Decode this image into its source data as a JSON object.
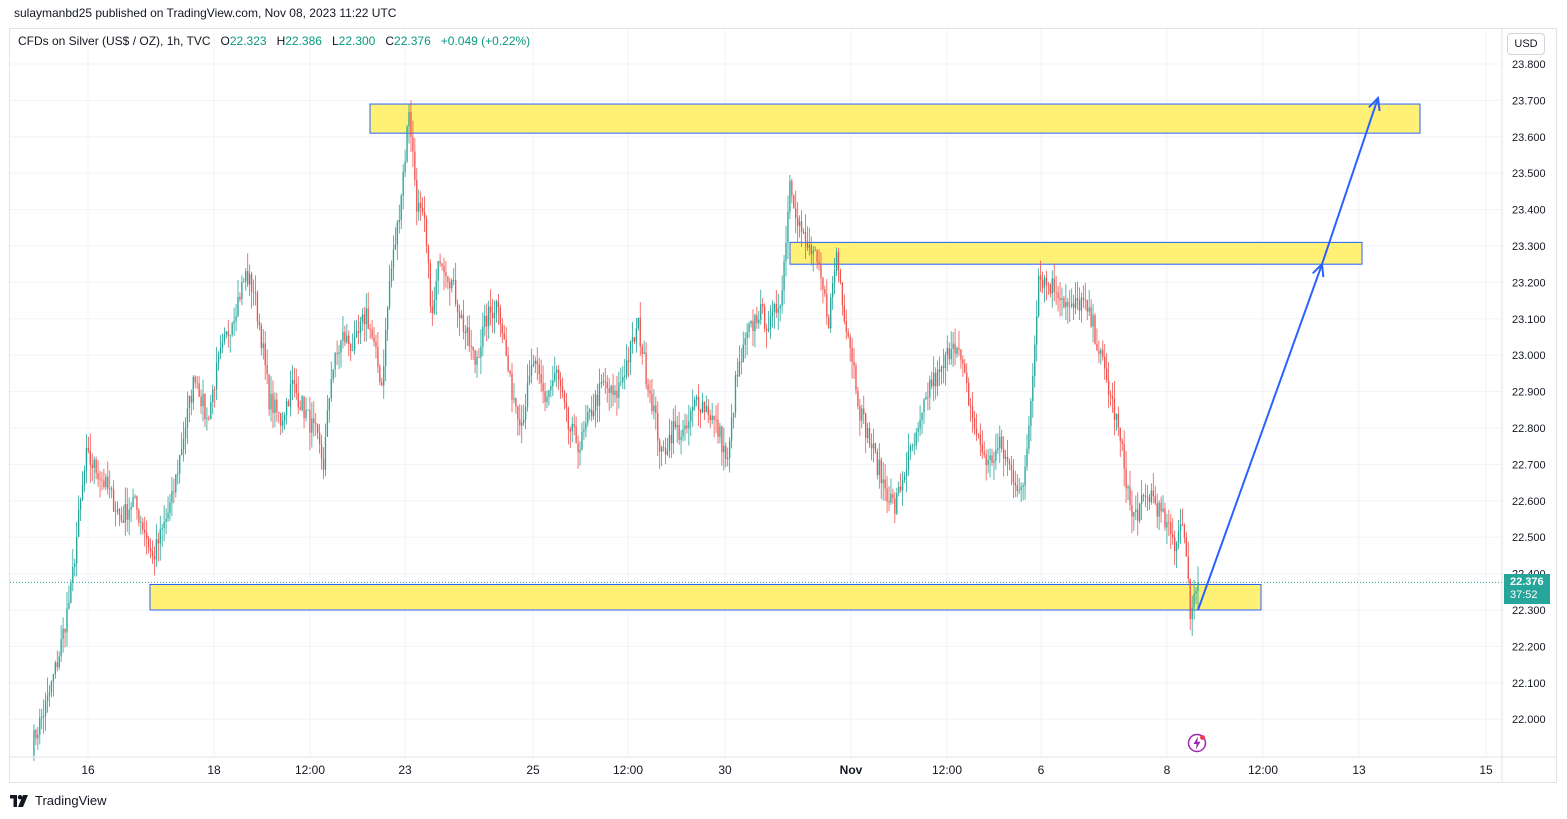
{
  "header": {
    "published": "sulaymanbd25 published on TradingView.com, Nov 08, 2023 11:22 UTC"
  },
  "symbol": {
    "name": "CFDs on Silver (US$ / OZ), 1h, TVC",
    "open_label": "O",
    "open": "22.323",
    "high_label": "H",
    "high": "22.386",
    "low_label": "L",
    "low": "22.300",
    "close_label": "C",
    "close": "22.376",
    "change": "+0.049 (+0.22%)"
  },
  "currency_button": "USD",
  "last_price": {
    "price": "22.376",
    "countdown": "37:52"
  },
  "footer": {
    "brand": "TradingView"
  },
  "colors": {
    "up": "#26a69a",
    "down": "#ef5350",
    "zone_fill": "#fff176",
    "zone_border": "#2962ff",
    "arrow": "#2962ff"
  },
  "chart_data": {
    "type": "candlestick",
    "title": "CFDs on Silver (US$ / OZ), 1h, TVC",
    "y_axis": {
      "ticks": [
        "23.800",
        "23.700",
        "23.600",
        "23.500",
        "23.400",
        "23.300",
        "23.200",
        "23.100",
        "23.000",
        "22.900",
        "22.800",
        "22.700",
        "22.600",
        "22.500",
        "22.400",
        "22.300",
        "22.200",
        "22.100",
        "22.000"
      ],
      "range": [
        21.92,
        23.82
      ]
    },
    "x_axis": {
      "ticks": [
        "16",
        "18",
        "12:00",
        "23",
        "25",
        "12:00",
        "30",
        "Nov",
        "12:00",
        "6",
        "8",
        "12:00",
        "13",
        "15"
      ]
    },
    "approx_path": [
      [
        0,
        21.93
      ],
      [
        8,
        22.05
      ],
      [
        14,
        22.18
      ],
      [
        20,
        22.35
      ],
      [
        24,
        22.55
      ],
      [
        28,
        22.72
      ],
      [
        34,
        22.68
      ],
      [
        40,
        22.62
      ],
      [
        46,
        22.55
      ],
      [
        52,
        22.6
      ],
      [
        58,
        22.52
      ],
      [
        62,
        22.44
      ],
      [
        66,
        22.5
      ],
      [
        72,
        22.6
      ],
      [
        78,
        22.78
      ],
      [
        84,
        22.95
      ],
      [
        90,
        22.82
      ],
      [
        96,
        22.98
      ],
      [
        104,
        23.12
      ],
      [
        110,
        23.22
      ],
      [
        114,
        23.18
      ],
      [
        118,
        23.05
      ],
      [
        122,
        22.88
      ],
      [
        128,
        22.82
      ],
      [
        134,
        22.92
      ],
      [
        140,
        22.85
      ],
      [
        146,
        22.78
      ],
      [
        150,
        22.7
      ],
      [
        154,
        22.95
      ],
      [
        160,
        23.05
      ],
      [
        166,
        23.02
      ],
      [
        172,
        23.12
      ],
      [
        176,
        23.02
      ],
      [
        180,
        22.92
      ],
      [
        184,
        23.2
      ],
      [
        188,
        23.35
      ],
      [
        192,
        23.55
      ],
      [
        194,
        23.68
      ],
      [
        198,
        23.42
      ],
      [
        202,
        23.35
      ],
      [
        206,
        23.1
      ],
      [
        210,
        23.28
      ],
      [
        216,
        23.2
      ],
      [
        222,
        23.08
      ],
      [
        228,
        22.98
      ],
      [
        234,
        23.1
      ],
      [
        240,
        23.15
      ],
      [
        246,
        22.92
      ],
      [
        252,
        22.82
      ],
      [
        258,
        22.98
      ],
      [
        264,
        22.88
      ],
      [
        270,
        22.95
      ],
      [
        276,
        22.8
      ],
      [
        282,
        22.75
      ],
      [
        288,
        22.85
      ],
      [
        294,
        22.92
      ],
      [
        300,
        22.88
      ],
      [
        306,
        22.98
      ],
      [
        312,
        23.08
      ],
      [
        316,
        22.95
      ],
      [
        320,
        22.85
      ],
      [
        324,
        22.72
      ],
      [
        330,
        22.8
      ],
      [
        336,
        22.78
      ],
      [
        342,
        22.88
      ],
      [
        348,
        22.85
      ],
      [
        354,
        22.78
      ],
      [
        358,
        22.7
      ],
      [
        362,
        22.92
      ],
      [
        368,
        23.05
      ],
      [
        374,
        23.12
      ],
      [
        380,
        23.08
      ],
      [
        386,
        23.18
      ],
      [
        390,
        23.48
      ],
      [
        394,
        23.38
      ],
      [
        398,
        23.3
      ],
      [
        402,
        23.28
      ],
      [
        406,
        23.2
      ],
      [
        410,
        23.1
      ],
      [
        414,
        23.28
      ],
      [
        418,
        23.12
      ],
      [
        422,
        23.0
      ],
      [
        426,
        22.85
      ],
      [
        432,
        22.75
      ],
      [
        438,
        22.65
      ],
      [
        444,
        22.58
      ],
      [
        450,
        22.7
      ],
      [
        456,
        22.78
      ],
      [
        462,
        22.92
      ],
      [
        468,
        22.95
      ],
      [
        474,
        23.05
      ],
      [
        478,
        22.98
      ],
      [
        482,
        22.88
      ],
      [
        486,
        22.78
      ],
      [
        492,
        22.7
      ],
      [
        498,
        22.75
      ],
      [
        504,
        22.68
      ],
      [
        510,
        22.62
      ],
      [
        514,
        22.88
      ],
      [
        518,
        23.22
      ],
      [
        522,
        23.2
      ],
      [
        528,
        23.18
      ],
      [
        534,
        23.12
      ],
      [
        540,
        23.15
      ],
      [
        546,
        23.08
      ],
      [
        552,
        22.95
      ],
      [
        558,
        22.82
      ],
      [
        562,
        22.7
      ],
      [
        566,
        22.55
      ],
      [
        570,
        22.58
      ],
      [
        576,
        22.62
      ],
      [
        582,
        22.55
      ],
      [
        588,
        22.48
      ],
      [
        592,
        22.56
      ],
      [
        596,
        22.3
      ],
      [
        600,
        22.376
      ]
    ],
    "last_price": 22.376
  },
  "annotations": {
    "zones": [
      {
        "name": "resistance-top",
        "price_high": 23.69,
        "price_low": 23.61
      },
      {
        "name": "resistance-mid",
        "price_high": 23.31,
        "price_low": 23.25
      },
      {
        "name": "support",
        "price_high": 22.37,
        "price_low": 22.3
      }
    ],
    "projection": [
      22.3,
      23.25,
      23.69
    ]
  }
}
